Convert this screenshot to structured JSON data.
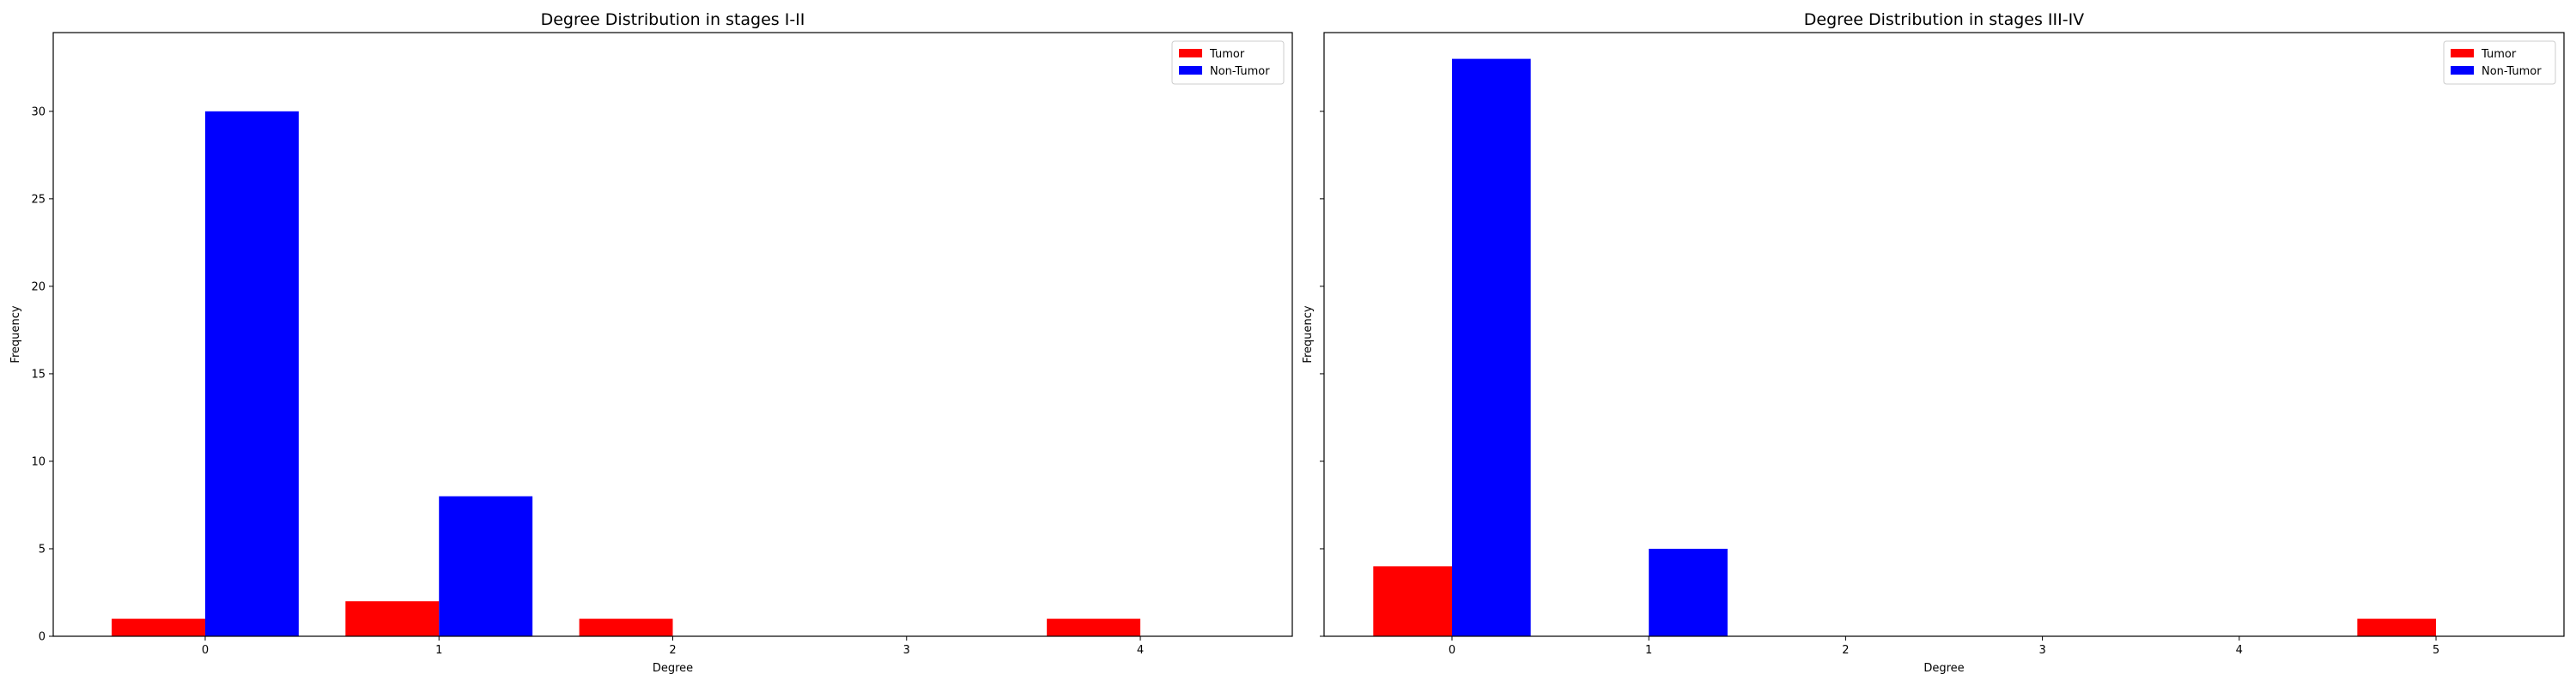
{
  "chart_data": [
    {
      "type": "bar",
      "title": "Degree Distribution in stages I-II",
      "xlabel": "Degree",
      "ylabel": "Frequency",
      "xlim": [
        -0.65,
        4.65
      ],
      "ylim": [
        0,
        34.5
      ],
      "xticks": [
        0,
        1,
        2,
        3,
        4
      ],
      "yticks": [
        0,
        5,
        10,
        15,
        20,
        25,
        30
      ],
      "bar_width": 0.4,
      "legend": "top-right",
      "grid": false,
      "series": [
        {
          "name": "Tumor",
          "color": "#ff0000",
          "x": [
            0,
            1,
            2,
            4
          ],
          "values": [
            1,
            2,
            1,
            1
          ]
        },
        {
          "name": "Non-Tumor",
          "color": "#0000ff",
          "x": [
            0,
            1
          ],
          "values": [
            30,
            8
          ]
        }
      ]
    },
    {
      "type": "bar",
      "title": "Degree Distribution in stages III-IV",
      "xlabel": "Degree",
      "ylabel": "Frequency",
      "xlim": [
        -0.65,
        5.65
      ],
      "ylim": [
        0,
        34.5
      ],
      "xticks": [
        0,
        1,
        2,
        3,
        4,
        5
      ],
      "yticks": [
        0,
        5,
        10,
        15,
        20,
        25,
        30
      ],
      "bar_width": 0.4,
      "legend": "top-right",
      "grid": false,
      "series": [
        {
          "name": "Tumor",
          "color": "#ff0000",
          "x": [
            0,
            5
          ],
          "values": [
            4,
            1
          ]
        },
        {
          "name": "Non-Tumor",
          "color": "#0000ff",
          "x": [
            0,
            1
          ],
          "values": [
            33,
            5
          ]
        }
      ]
    }
  ]
}
